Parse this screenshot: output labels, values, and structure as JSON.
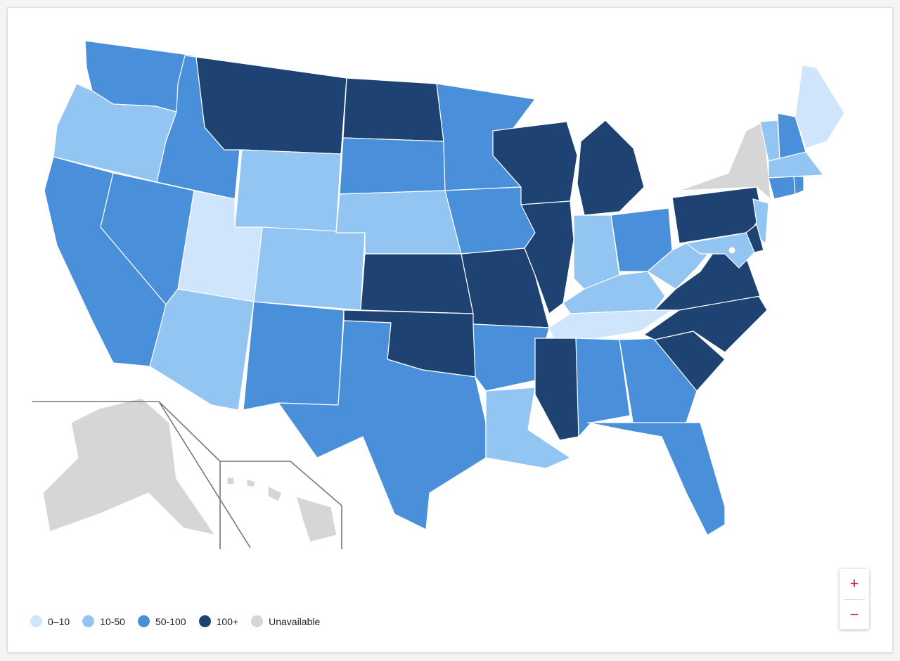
{
  "colors": {
    "0-10": "#cfe5fb",
    "10-50": "#93c5f3",
    "50-100": "#4a8fd9",
    "100+": "#1e4372",
    "unavailable": "#d6d6d6"
  },
  "legend": [
    {
      "key": "0-10",
      "label": "0–10"
    },
    {
      "key": "10-50",
      "label": "10-50"
    },
    {
      "key": "50-100",
      "label": "50-100"
    },
    {
      "key": "100+",
      "label": "100+"
    },
    {
      "key": "unavailable",
      "label": "Unavailable"
    }
  ],
  "zoom": {
    "in_label": "+",
    "out_label": "−"
  },
  "states": {
    "WA": "50-100",
    "OR": "10-50",
    "CA": "50-100",
    "ID": "50-100",
    "NV": "50-100",
    "MT": "100+",
    "WY": "10-50",
    "UT": "0-10",
    "AZ": "10-50",
    "CO": "10-50",
    "NM": "50-100",
    "ND": "100+",
    "SD": "50-100",
    "NE": "10-50",
    "KS": "100+",
    "OK": "100+",
    "TX": "50-100",
    "MN": "50-100",
    "IA": "50-100",
    "MO": "100+",
    "AR": "50-100",
    "LA": "10-50",
    "WI": "100+",
    "IL": "100+",
    "MI": "100+",
    "IN": "10-50",
    "OH": "50-100",
    "KY": "10-50",
    "TN": "0-10",
    "MS": "100+",
    "AL": "50-100",
    "GA": "50-100",
    "FL": "50-100",
    "SC": "100+",
    "NC": "100+",
    "VA": "100+",
    "WV": "10-50",
    "PA": "100+",
    "NY": "unavailable",
    "ME": "0-10",
    "VT": "10-50",
    "NH": "50-100",
    "MA": "10-50",
    "CT": "50-100",
    "RI": "50-100",
    "NJ": "10-50",
    "DE": "100+",
    "MD": "10-50",
    "AK": "unavailable",
    "HI": "unavailable"
  }
}
